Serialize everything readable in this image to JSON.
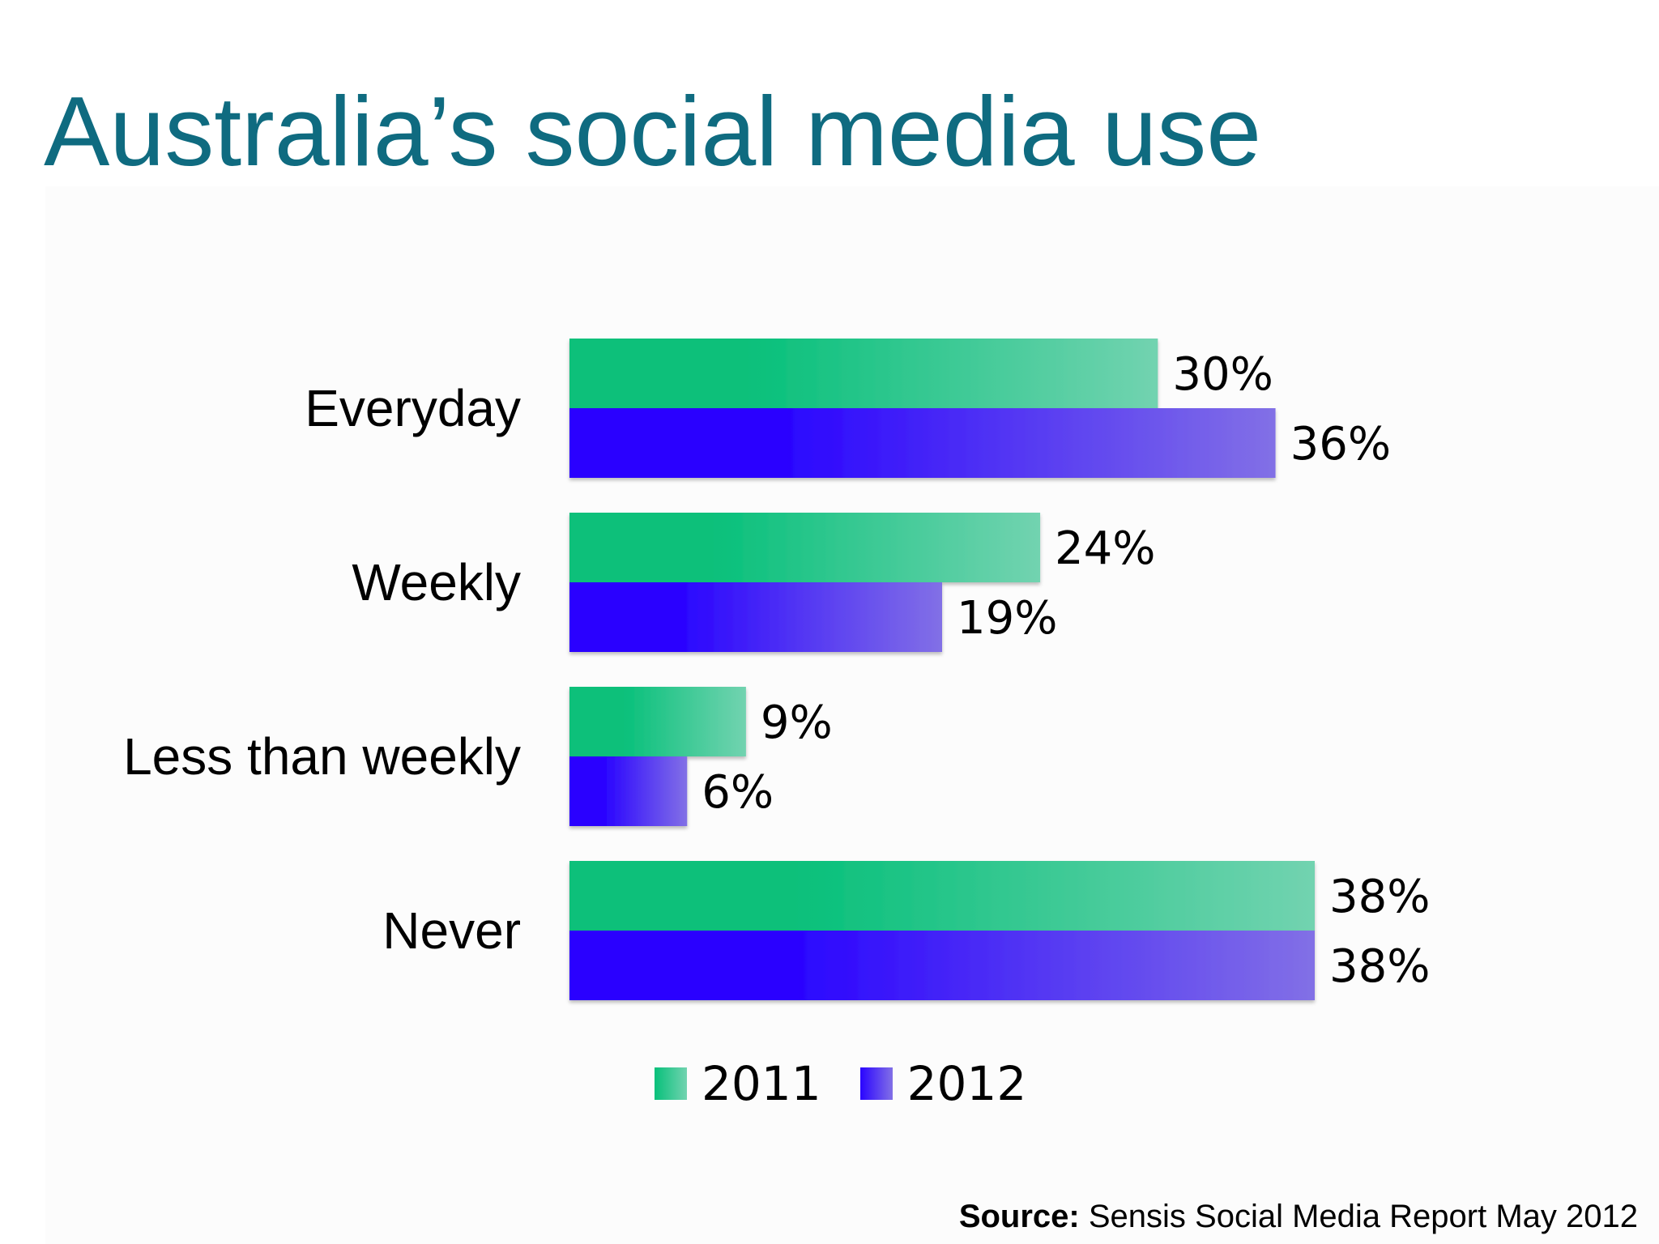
{
  "slide": {
    "title": "Australia’s social media use"
  },
  "chart_data": {
    "type": "bar",
    "orientation": "horizontal",
    "categories": [
      "Everyday",
      "Weekly",
      "Less than weekly",
      "Never"
    ],
    "series": [
      {
        "name": "2011",
        "values": [
          30,
          24,
          9,
          38
        ],
        "labels": [
          "30%",
          "24%",
          "9%",
          "38%"
        ],
        "color": "#07c07a",
        "color_light": "#72d3b0"
      },
      {
        "name": "2012",
        "values": [
          36,
          19,
          6,
          38
        ],
        "labels": [
          "36%",
          "19%",
          "6%",
          "38%"
        ],
        "color": "#2a04ff",
        "color_light": "#8270e6"
      }
    ],
    "value_unit": "%",
    "xlim": [
      0,
      38
    ],
    "grid": false,
    "legend_position": "bottom"
  },
  "source": {
    "label": "Source:",
    "text": "Sensis Social Media Report May 2012"
  }
}
